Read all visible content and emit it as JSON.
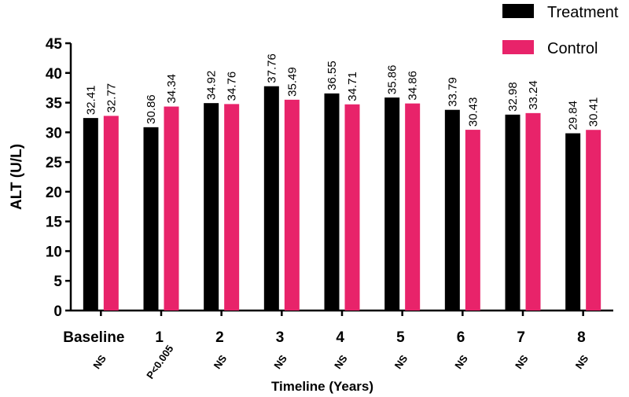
{
  "chart_data": {
    "type": "bar",
    "title": "",
    "xlabel": "Timeline (Years)",
    "ylabel": "ALT (U/L)",
    "ylim": [
      0,
      45
    ],
    "yticks": [
      0,
      5,
      10,
      15,
      20,
      25,
      30,
      35,
      40,
      45
    ],
    "grid": false,
    "legend_position": "top-right",
    "categories": [
      "Baseline",
      "1",
      "2",
      "3",
      "4",
      "5",
      "6",
      "7",
      "8"
    ],
    "significance": [
      "NS",
      "P<0.005",
      "NS",
      "NS",
      "NS",
      "NS",
      "NS",
      "NS",
      "NS"
    ],
    "series": [
      {
        "name": "Treatment",
        "color": "#000000",
        "values": [
          32.41,
          30.86,
          34.92,
          37.76,
          36.55,
          35.86,
          33.79,
          32.98,
          29.84
        ],
        "labels": [
          "32.41",
          "30.86",
          "34.92",
          "37.76",
          "36.55",
          "35.86",
          "33.79",
          "32.98",
          "29.84"
        ]
      },
      {
        "name": "Control",
        "color": "#e8236a",
        "values": [
          32.77,
          34.34,
          34.76,
          35.49,
          34.71,
          34.86,
          30.43,
          33.24,
          30.41
        ],
        "labels": [
          "32.77",
          "34.34",
          "34.76",
          "35.49",
          "34.71",
          "34.86",
          "30.43",
          "33.24",
          "30.41"
        ]
      }
    ]
  }
}
